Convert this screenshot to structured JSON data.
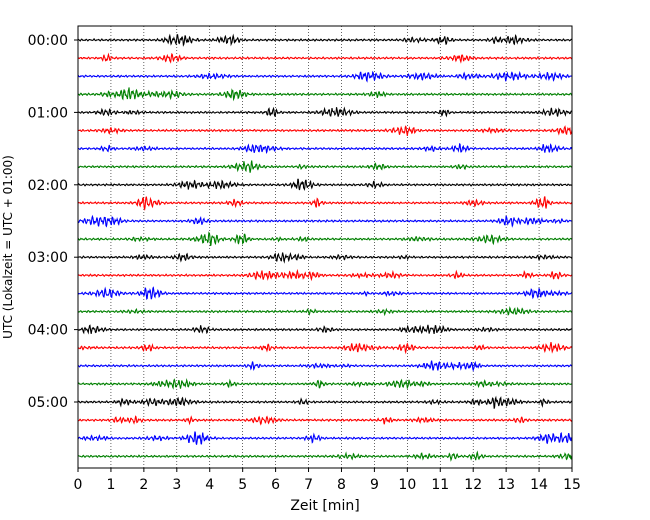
{
  "chart_data": {
    "type": "line",
    "chart_kind": "seismogram-helicorder",
    "xlabel": "Zeit  [min]",
    "ylabel": "UTC (Lokalzeit = UTC + 01:00)",
    "xlim": [
      0,
      15
    ],
    "x_ticks": [
      "0",
      "1",
      "2",
      "3",
      "4",
      "5",
      "6",
      "7",
      "8",
      "9",
      "10",
      "11",
      "12",
      "13",
      "14",
      "15"
    ],
    "y_tick_labels": [
      "00:00",
      "01:00",
      "02:00",
      "03:00",
      "04:00",
      "05:00"
    ],
    "minutes_per_line": 15,
    "trace_count": 24,
    "trace_colors": [
      "#000000",
      "#ff0000",
      "#0000ff",
      "#008000"
    ],
    "grid": "vertical dotted at each minute",
    "legend": "none"
  }
}
